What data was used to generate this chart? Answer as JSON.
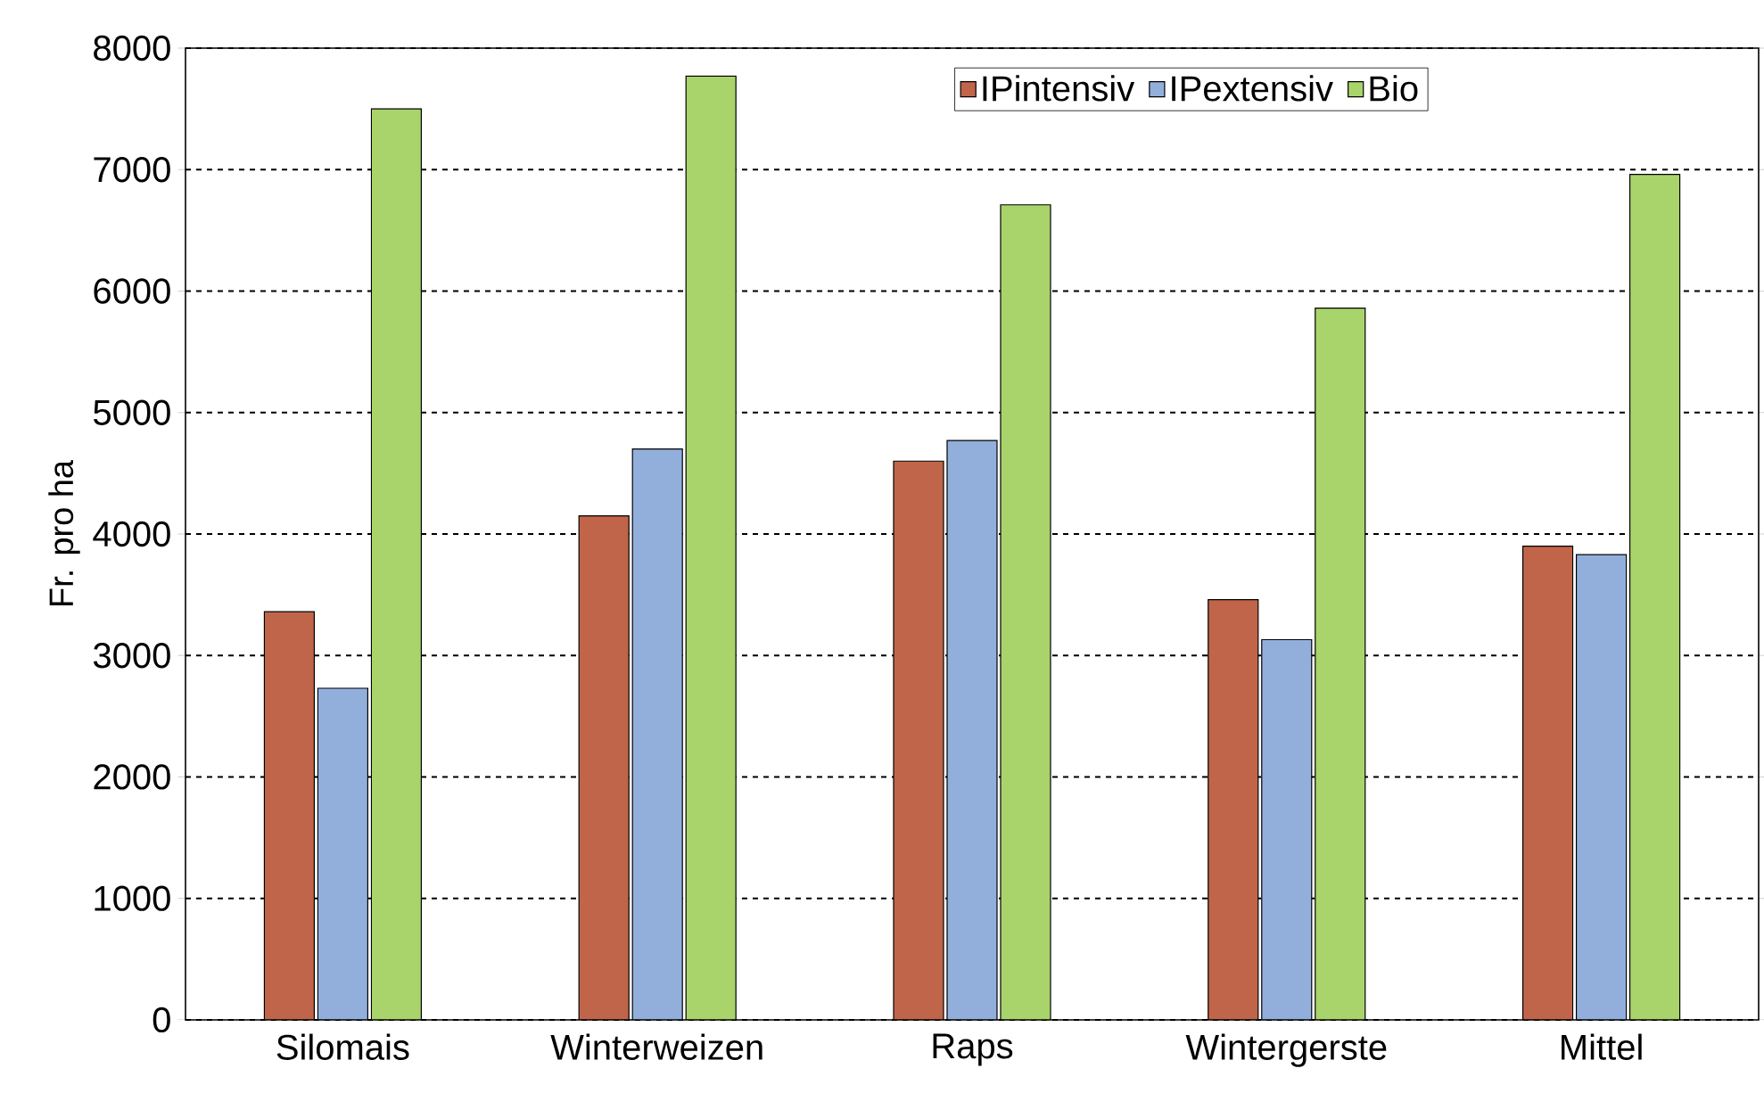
{
  "chart_data": {
    "type": "bar",
    "ylabel": "Fr. pro ha",
    "categories": [
      "Silomais",
      "Winterweizen",
      "Raps",
      "Wintergerste",
      "Mittel"
    ],
    "series": [
      {
        "name": "IPintensiv",
        "color": "#c0654a",
        "values": [
          3360,
          4150,
          4600,
          3460,
          3900
        ]
      },
      {
        "name": "IPextensiv",
        "color": "#92afdc",
        "values": [
          2730,
          4700,
          4770,
          3130,
          3830
        ]
      },
      {
        "name": "Bio",
        "color": "#a9d46b",
        "values": [
          7500,
          7770,
          6710,
          5860,
          6960
        ]
      }
    ],
    "ylim": [
      0,
      8000
    ],
    "yticks": [
      0,
      1000,
      2000,
      3000,
      4000,
      5000,
      6000,
      7000,
      8000
    ],
    "grid": "y",
    "legend": "top right"
  }
}
